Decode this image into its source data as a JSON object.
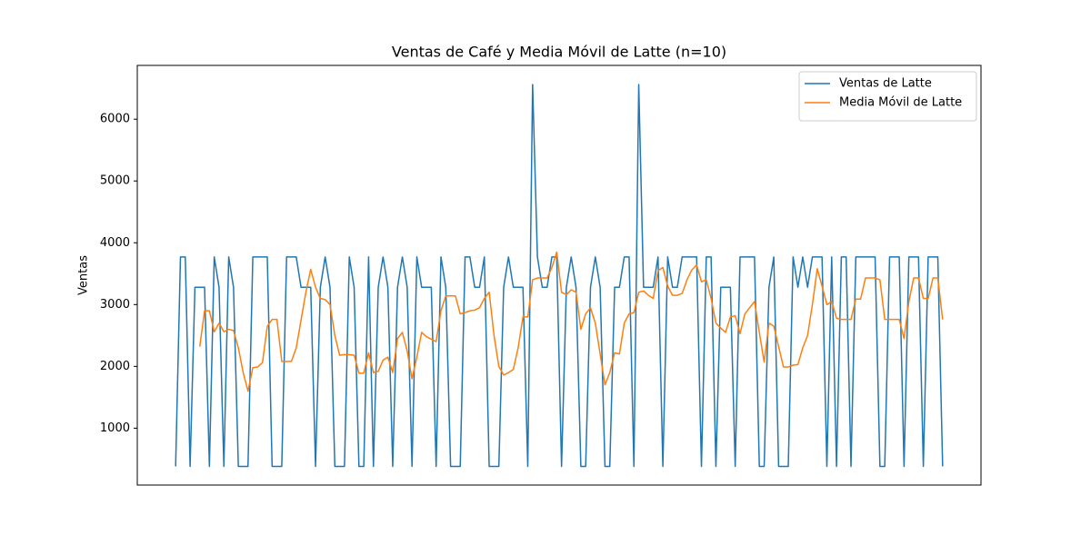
{
  "chart_data": {
    "type": "line",
    "title": "Ventas de Café y Media Móvil de Latte (n=10)",
    "y_label": "Ventas",
    "categories": [
      null,
      null,
      null,
      null,
      null,
      null,
      null,
      null,
      null,
      null,
      null,
      null,
      null,
      null,
      null,
      null,
      null,
      null,
      null,
      null,
      null,
      null,
      null,
      null,
      null,
      null,
      null,
      null,
      null,
      null,
      null,
      null,
      null,
      null,
      null,
      null,
      null,
      null,
      null,
      null,
      null,
      null,
      null,
      null,
      null,
      null,
      null,
      null,
      null,
      null,
      null,
      null,
      null,
      null,
      null,
      null,
      null,
      null,
      null,
      null,
      null,
      null,
      null,
      null,
      null,
      null,
      null,
      null,
      null,
      null,
      null,
      null,
      null,
      null,
      null,
      null,
      null,
      null,
      null,
      null,
      null,
      null,
      null,
      null,
      null,
      null,
      null,
      null,
      null,
      null,
      null,
      null,
      null,
      null,
      null,
      null,
      null,
      null,
      null,
      null,
      null,
      null,
      null,
      null,
      null,
      null,
      null,
      null,
      null,
      null,
      null,
      null,
      null,
      null,
      null,
      null,
      null,
      null,
      null,
      null,
      null,
      null,
      null,
      null,
      null,
      null,
      null,
      null,
      null,
      null,
      null,
      null,
      null,
      null,
      null,
      null,
      null,
      null,
      null,
      null,
      null,
      null,
      null,
      null,
      null,
      null,
      null,
      null,
      null,
      null,
      null,
      null,
      null,
      null,
      null,
      null,
      null,
      null,
      null,
      null
    ],
    "series": [
      {
        "name": "Ventas de Latte",
        "color": "#1f77b4",
        "values": [
          382,
          3770,
          3770,
          382,
          3280,
          3280,
          3280,
          382,
          3770,
          3280,
          382,
          3770,
          3280,
          382,
          382,
          382,
          3770,
          3770,
          3770,
          3770,
          382,
          382,
          382,
          3770,
          3770,
          3770,
          3280,
          3280,
          3280,
          382,
          3280,
          3770,
          3280,
          382,
          382,
          382,
          3770,
          3280,
          382,
          382,
          3770,
          382,
          3280,
          3770,
          3280,
          382,
          3280,
          3770,
          3280,
          382,
          3770,
          3280,
          3280,
          3280,
          382,
          3770,
          3280,
          382,
          382,
          382,
          3770,
          3770,
          3280,
          3280,
          3770,
          382,
          382,
          382,
          3280,
          3770,
          3280,
          3280,
          3280,
          382,
          6560,
          3770,
          3280,
          3280,
          3770,
          3770,
          382,
          3280,
          3770,
          3280,
          382,
          382,
          3280,
          3770,
          3280,
          382,
          382,
          3280,
          3280,
          3770,
          3770,
          382,
          6560,
          3280,
          3280,
          3280,
          3770,
          382,
          3770,
          3280,
          3280,
          3770,
          3770,
          3770,
          3770,
          382,
          3770,
          3770,
          382,
          3280,
          3280,
          3280,
          382,
          3770,
          3770,
          3770,
          3770,
          382,
          382,
          3280,
          3770,
          382,
          382,
          382,
          3770,
          3280,
          3770,
          3280,
          3770,
          3770,
          3770,
          382,
          3770,
          382,
          3770,
          3770,
          382,
          3770,
          3770,
          3770,
          3770,
          3770,
          382,
          382,
          3770,
          3770,
          3770,
          382,
          3770,
          3770,
          3770,
          382,
          3770,
          3770,
          3770,
          382
        ]
      },
      {
        "name": "Media Móvil de Latte",
        "color": "#ff7f0e",
        "values": [
          null,
          null,
          null,
          null,
          null,
          2320,
          2900,
          2900,
          2560,
          2700,
          2560,
          2600,
          2580,
          2300,
          1900,
          1600,
          1980,
          1990,
          2060,
          2650,
          2760,
          2760,
          2080,
          2080,
          2080,
          2300,
          2750,
          3200,
          3570,
          3280,
          3100,
          3080,
          3000,
          2500,
          2180,
          2190,
          2190,
          2180,
          1890,
          1890,
          2220,
          1900,
          1920,
          2100,
          2150,
          1900,
          2450,
          2550,
          2250,
          1800,
          2150,
          2550,
          2480,
          2440,
          2400,
          2900,
          3140,
          3140,
          3140,
          2850,
          2870,
          2900,
          2910,
          2950,
          3100,
          3200,
          2500,
          2000,
          1860,
          1900,
          1950,
          2300,
          2800,
          2800,
          3400,
          3430,
          3430,
          3430,
          3600,
          3850,
          3200,
          3160,
          3240,
          3200,
          2600,
          2850,
          2950,
          2700,
          2200,
          1700,
          1900,
          2220,
          2200,
          2700,
          2850,
          2870,
          3200,
          3220,
          3150,
          3100,
          3550,
          3600,
          3300,
          3150,
          3150,
          3180,
          3400,
          3560,
          3640,
          3370,
          3400,
          3100,
          2700,
          2620,
          2550,
          2800,
          2820,
          2530,
          2850,
          2950,
          3050,
          2550,
          2070,
          2700,
          2650,
          2320,
          1990,
          1990,
          2020,
          2030,
          2300,
          2500,
          3000,
          3580,
          3300,
          3000,
          3050,
          2780,
          2760,
          2760,
          2760,
          3090,
          3090,
          3430,
          3430,
          3430,
          3400,
          2760,
          2760,
          2760,
          2760,
          2450,
          3050,
          3430,
          3430,
          3100,
          3100,
          3430,
          3430,
          2760
        ]
      }
    ],
    "ylim": [
      80,
      6870
    ],
    "yticks": [
      1000,
      2000,
      3000,
      4000,
      5000,
      6000
    ],
    "grid": false,
    "legend": "upper right"
  }
}
